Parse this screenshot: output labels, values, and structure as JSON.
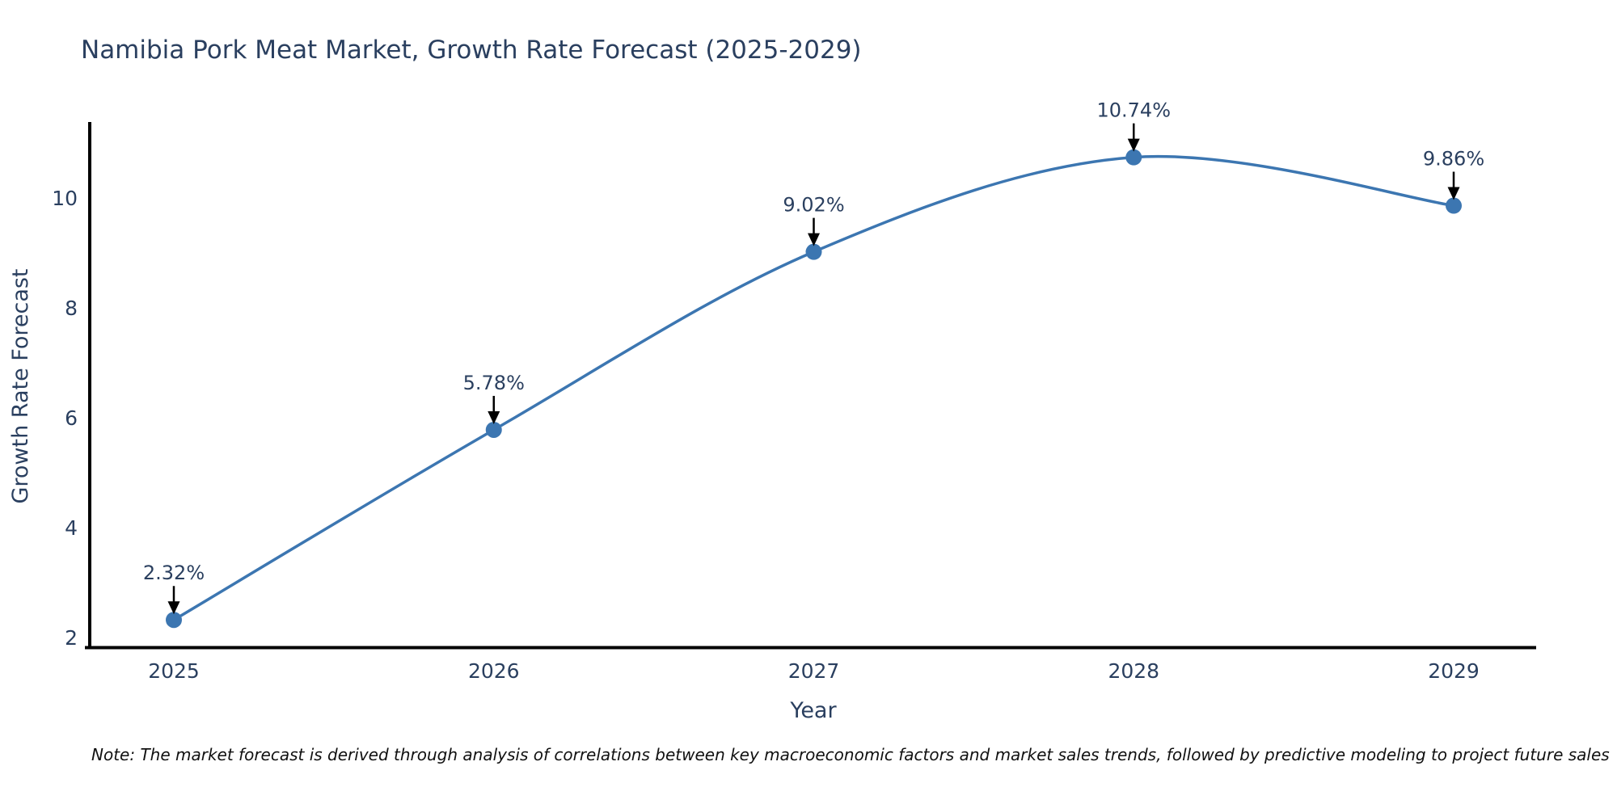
{
  "chart_data": {
    "type": "line",
    "title": "Namibia Pork Meat Market, Growth Rate Forecast (2025-2029)",
    "xlabel": "Year",
    "ylabel": "Growth Rate Forecast",
    "categories": [
      "2025",
      "2026",
      "2027",
      "2028",
      "2029"
    ],
    "series": [
      {
        "name": "Growth Rate Forecast",
        "values": [
          2.32,
          5.78,
          9.02,
          10.74,
          9.86
        ]
      }
    ],
    "point_labels": [
      "2.32%",
      "5.78%",
      "9.02%",
      "10.74%",
      "9.86%"
    ],
    "yticks": [
      2,
      4,
      6,
      8,
      10
    ],
    "ylim": [
      1.8,
      11.35
    ],
    "grid": false,
    "legend_position": "none",
    "line_smoothing": "spline",
    "note": "Note: The market forecast is derived through analysis of correlations between key macroeconomic factors and market sales trends, followed by predictive modeling to project future sales",
    "colors": {
      "line": "#3c76b1",
      "marker": "#3c76b1",
      "axis": "#000000",
      "text": "#2a3f5f",
      "arrow": "#000000",
      "background": "#ffffff"
    }
  }
}
